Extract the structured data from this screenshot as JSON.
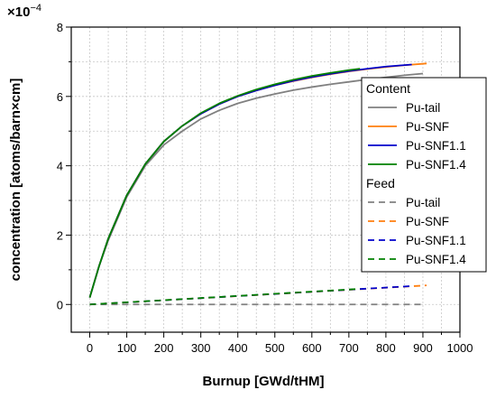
{
  "chart_data": {
    "type": "line",
    "xlabel": "Burnup [GWd/tHM]",
    "ylabel": "concentration [atoms/barn×cm]",
    "y_multiplier": "×10",
    "y_exponent": "−4",
    "xlim": [
      -50,
      1000
    ],
    "ylim": [
      -0.8,
      8
    ],
    "x_ticks": [
      0,
      100,
      200,
      300,
      400,
      500,
      600,
      700,
      800,
      900,
      1000
    ],
    "y_ticks": [
      0,
      2,
      4,
      6,
      8
    ],
    "grid": true,
    "legend_position": "right",
    "groups": [
      {
        "title": "Content",
        "line_style": "solid",
        "series": [
          {
            "name": "Pu-tail",
            "color": "#808080",
            "x": [
              0,
              25,
              50,
              100,
              150,
              200,
              250,
              300,
              350,
              400,
              450,
              500,
              550,
              600,
              650,
              700,
              750,
              800,
              850,
              900
            ],
            "y": [
              0.2,
              1.1,
              1.85,
              3.1,
              4.0,
              4.6,
              5.0,
              5.35,
              5.6,
              5.8,
              5.95,
              6.07,
              6.18,
              6.27,
              6.35,
              6.42,
              6.49,
              6.55,
              6.61,
              6.66
            ]
          },
          {
            "name": "Pu-SNF",
            "color": "#ff7f0e",
            "x": [
              0,
              25,
              50,
              100,
              150,
              200,
              250,
              300,
              350,
              400,
              450,
              500,
              550,
              600,
              650,
              700,
              750,
              800,
              850,
              910
            ],
            "y": [
              0.2,
              1.1,
              1.9,
              3.15,
              4.05,
              4.7,
              5.15,
              5.5,
              5.78,
              6.0,
              6.17,
              6.32,
              6.44,
              6.55,
              6.64,
              6.72,
              6.79,
              6.85,
              6.9,
              6.95
            ]
          },
          {
            "name": "Pu-SNF1.1",
            "color": "#0000cc",
            "x": [
              0,
              25,
              50,
              100,
              150,
              200,
              250,
              300,
              350,
              400,
              450,
              500,
              550,
              600,
              650,
              700,
              750,
              800,
              870
            ],
            "y": [
              0.2,
              1.1,
              1.9,
              3.15,
              4.05,
              4.7,
              5.15,
              5.5,
              5.78,
              6.0,
              6.17,
              6.32,
              6.45,
              6.56,
              6.65,
              6.73,
              6.8,
              6.86,
              6.92
            ]
          },
          {
            "name": "Pu-SNF1.4",
            "color": "#008000",
            "x": [
              0,
              25,
              50,
              100,
              150,
              200,
              250,
              300,
              350,
              400,
              450,
              500,
              550,
              600,
              650,
              700,
              730
            ],
            "y": [
              0.2,
              1.1,
              1.9,
              3.15,
              4.05,
              4.7,
              5.15,
              5.52,
              5.8,
              6.02,
              6.2,
              6.35,
              6.48,
              6.59,
              6.68,
              6.76,
              6.8
            ]
          }
        ]
      },
      {
        "title": "Feed",
        "line_style": "dashed",
        "series": [
          {
            "name": "Pu-tail",
            "color": "#808080",
            "x": [
              0,
              900
            ],
            "y": [
              0,
              0
            ]
          },
          {
            "name": "Pu-SNF",
            "color": "#ff7f0e",
            "x": [
              0,
              910
            ],
            "y": [
              0,
              0.55
            ]
          },
          {
            "name": "Pu-SNF1.1",
            "color": "#0000cc",
            "x": [
              0,
              870
            ],
            "y": [
              0,
              0.53
            ]
          },
          {
            "name": "Pu-SNF1.4",
            "color": "#008000",
            "x": [
              0,
              730
            ],
            "y": [
              0,
              0.45
            ]
          }
        ]
      }
    ]
  }
}
